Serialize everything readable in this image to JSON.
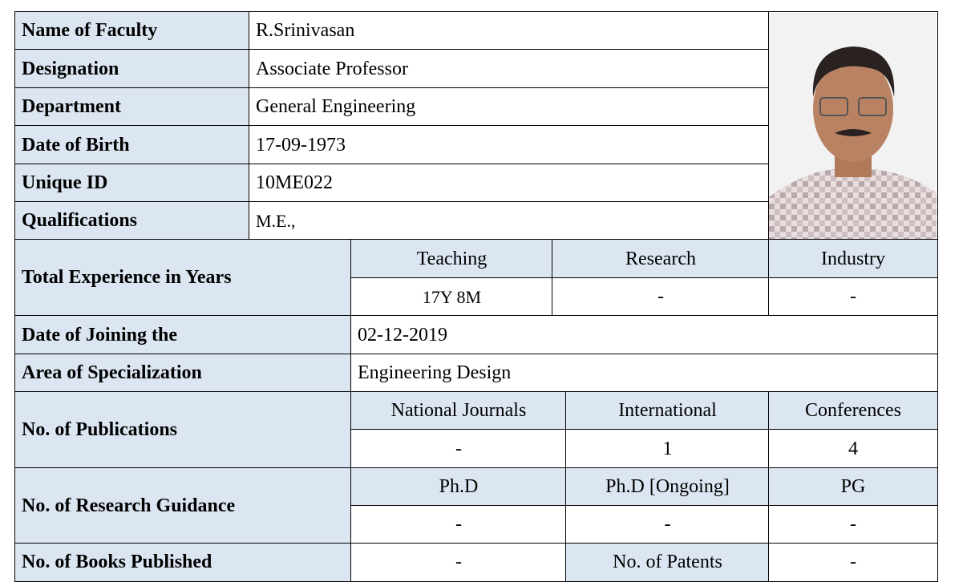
{
  "profile": {
    "rows": [
      {
        "label": "Name of Faculty",
        "value": "R.Srinivasan"
      },
      {
        "label": "Designation",
        "value": "Associate  Professor"
      },
      {
        "label": "Department",
        "value": "General Engineering"
      },
      {
        "label": "Date of Birth",
        "value": "17-09-1973"
      },
      {
        "label": "Unique ID",
        "value": "10ME022"
      },
      {
        "label": "Qualifications",
        "value": "M.E.,"
      }
    ]
  },
  "experience": {
    "label": "Total Experience in Years",
    "headers": [
      "Teaching",
      "Research",
      "Industry"
    ],
    "values": [
      "17Y 8M",
      "-",
      "-"
    ]
  },
  "joining": {
    "label": "Date of Joining the",
    "value": "02-12-2019"
  },
  "specialization": {
    "label": "Area of Specialization",
    "value": "Engineering Design"
  },
  "publications": {
    "label": "No. of  Publications",
    "headers": [
      "National Journals",
      "International",
      "Conferences"
    ],
    "values": [
      "-",
      1,
      4
    ]
  },
  "guidance": {
    "label": "No. of Research Guidance",
    "headers": [
      "Ph.D",
      "Ph.D [Ongoing]",
      "PG"
    ],
    "values": [
      "-",
      "-",
      "-"
    ]
  },
  "books": {
    "label": "No. of Books Published",
    "value": "-",
    "patents_label": "No. of Patents",
    "patents_value": "-"
  }
}
